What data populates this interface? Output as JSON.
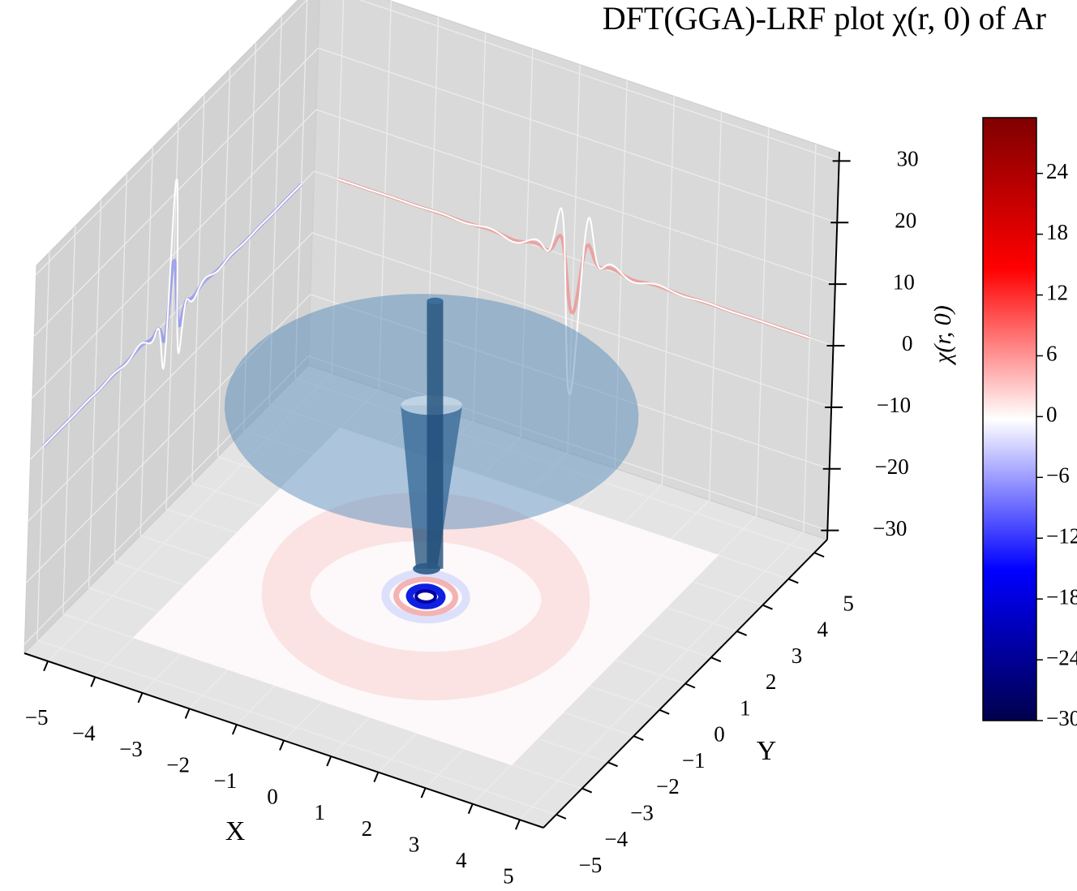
{
  "chart_data": {
    "type": "surface3d",
    "title": "DFT(GGA)-LRF plot χ(r, 0) of Ar",
    "x_label": "X",
    "y_label": "Y",
    "colorbar_label": "χ(r, 0)",
    "cmap": "seismic",
    "xlim": [
      -5.5,
      5.5
    ],
    "ylim": [
      -5.5,
      5.5
    ],
    "zlim": [
      -31.5,
      31.5
    ],
    "xticks": [
      {
        "value": -5,
        "label": "−5"
      },
      {
        "value": -4,
        "label": "−4"
      },
      {
        "value": -3,
        "label": "−3"
      },
      {
        "value": -2,
        "label": "−2"
      },
      {
        "value": -1,
        "label": "−1"
      },
      0,
      1,
      2,
      3,
      4,
      5
    ],
    "yticks": [
      {
        "value": -5,
        "label": "−5"
      },
      {
        "value": -4,
        "label": "−4"
      },
      {
        "value": -3,
        "label": "−3"
      },
      {
        "value": -2,
        "label": "−2"
      },
      {
        "value": -1,
        "label": "−1"
      },
      0,
      1,
      2,
      3,
      4,
      5
    ],
    "zticks": [
      {
        "value": -30,
        "label": "−30"
      },
      {
        "value": -20,
        "label": "−20"
      },
      {
        "value": -10,
        "label": "−10"
      },
      0,
      10,
      20,
      30
    ],
    "clim": [
      -30,
      29.5
    ],
    "cticks": [
      {
        "value": -30,
        "label": "−30"
      },
      {
        "value": -24,
        "label": "−24"
      },
      {
        "value": -18,
        "label": "−18"
      },
      {
        "value": -12,
        "label": "−12"
      },
      {
        "value": -6,
        "label": "−6"
      },
      0,
      6,
      12,
      18,
      24
    ],
    "grid": true
  }
}
